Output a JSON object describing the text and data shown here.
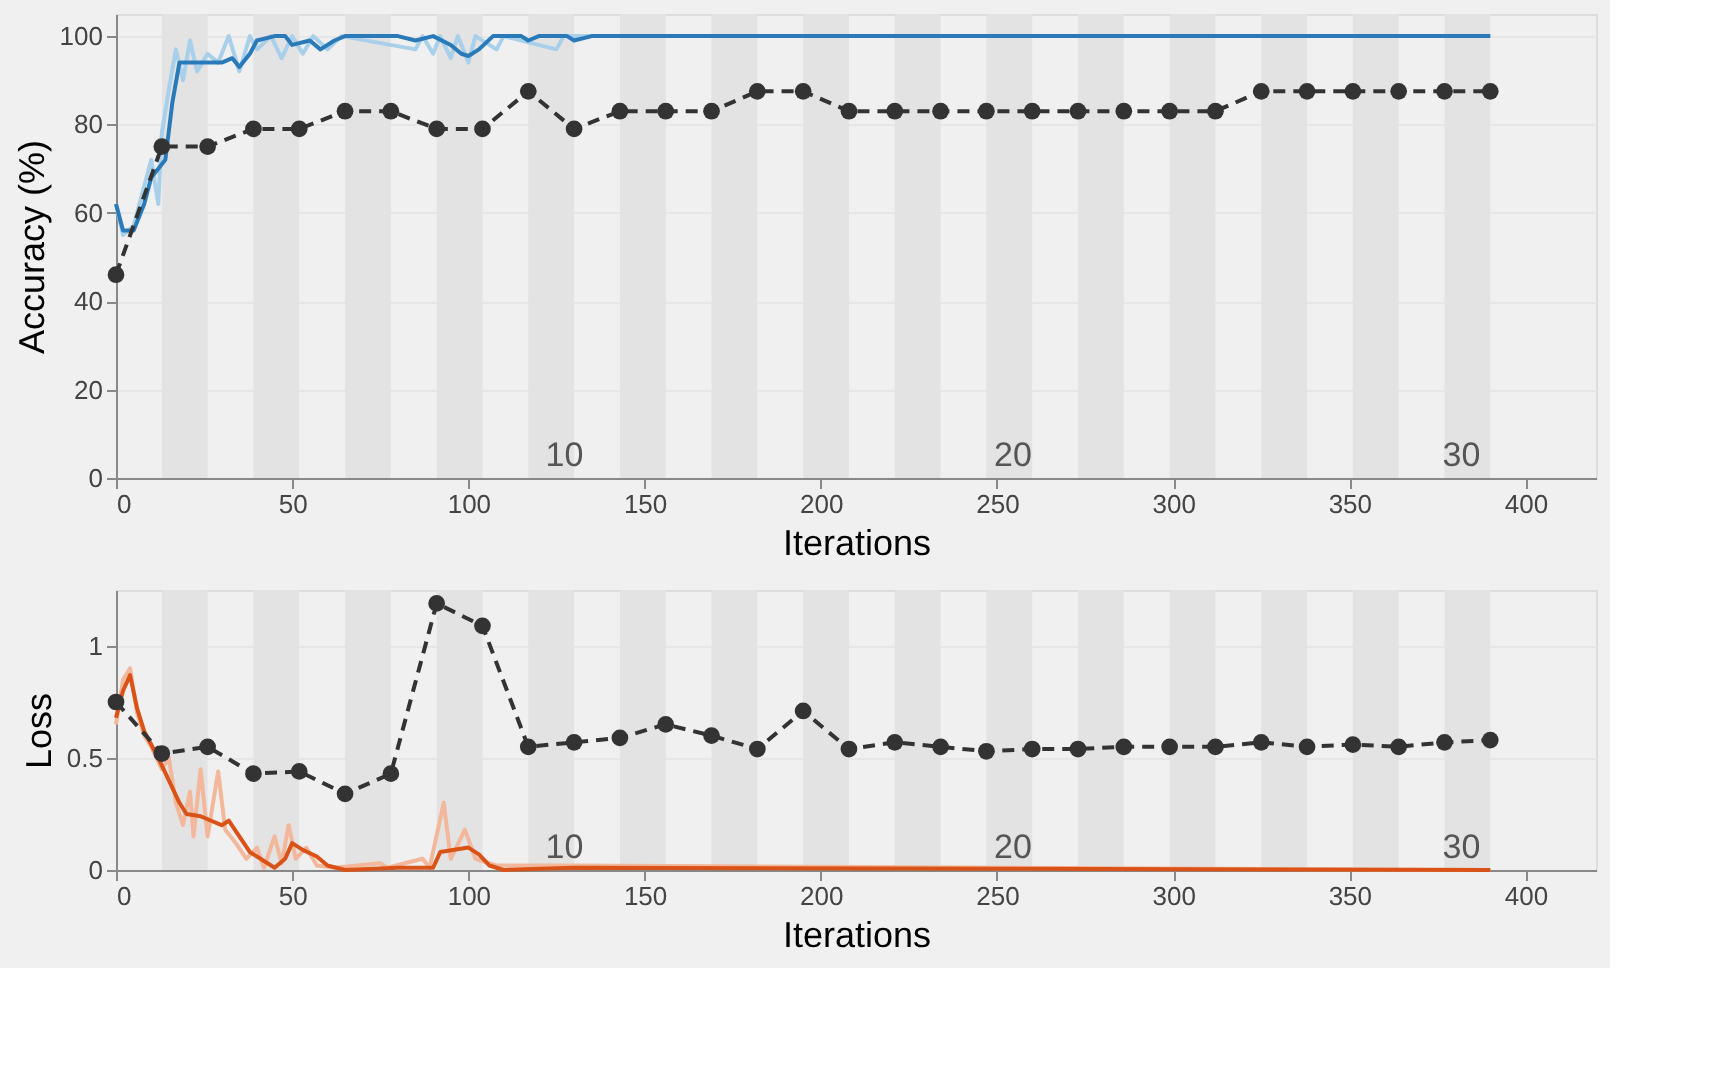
{
  "chart_data": [
    {
      "type": "line",
      "xlabel": "Iterations",
      "ylabel": "Accuracy (%)",
      "xlim": [
        0,
        420
      ],
      "xticks": [
        0,
        50,
        100,
        150,
        200,
        250,
        300,
        350,
        400
      ],
      "ylim": [
        0,
        105
      ],
      "yticks": [
        0,
        20,
        40,
        60,
        80,
        100
      ],
      "grid": "y",
      "bands": [
        {
          "axis": "x",
          "from": 13,
          "to": 26,
          "color": "#e3e3e3"
        },
        {
          "axis": "x",
          "from": 39,
          "to": 52,
          "color": "#e3e3e3"
        },
        {
          "axis": "x",
          "from": 65,
          "to": 78,
          "color": "#e3e3e3"
        },
        {
          "axis": "x",
          "from": 91,
          "to": 104,
          "color": "#e3e3e3"
        },
        {
          "axis": "x",
          "from": 117,
          "to": 130,
          "color": "#e3e3e3"
        },
        {
          "axis": "x",
          "from": 143,
          "to": 156,
          "color": "#e3e3e3"
        },
        {
          "axis": "x",
          "from": 169,
          "to": 182,
          "color": "#e3e3e3"
        },
        {
          "axis": "x",
          "from": 195,
          "to": 208,
          "color": "#e3e3e3"
        },
        {
          "axis": "x",
          "from": 221,
          "to": 234,
          "color": "#e3e3e3"
        },
        {
          "axis": "x",
          "from": 247,
          "to": 260,
          "color": "#e3e3e3"
        },
        {
          "axis": "x",
          "from": 273,
          "to": 286,
          "color": "#e3e3e3"
        },
        {
          "axis": "x",
          "from": 299,
          "to": 312,
          "color": "#e3e3e3"
        },
        {
          "axis": "x",
          "from": 325,
          "to": 338,
          "color": "#e3e3e3"
        },
        {
          "axis": "x",
          "from": 351,
          "to": 364,
          "color": "#e3e3e3"
        },
        {
          "axis": "x",
          "from": 377,
          "to": 390,
          "color": "#e3e3e3"
        }
      ],
      "annotations": [
        "10",
        "20",
        "30"
      ],
      "series": [
        {
          "type": "line",
          "color": "#a9d0ea",
          "marker": "none",
          "line_style": "solid",
          "x": [
            0,
            2,
            5,
            8,
            10,
            12,
            13,
            15,
            17,
            19,
            21,
            23,
            26,
            29,
            32,
            35,
            38,
            40,
            44,
            47,
            50,
            53,
            56,
            60,
            64,
            85,
            87,
            90,
            92,
            95,
            97,
            100,
            102,
            108,
            110,
            125,
            127,
            390
          ],
          "values": [
            62,
            55,
            57,
            66,
            72,
            62,
            78,
            88,
            97,
            90,
            99,
            92,
            96,
            94,
            100,
            92,
            100,
            97,
            100,
            95,
            100,
            96,
            100,
            97,
            100,
            97,
            100,
            96,
            100,
            95,
            100,
            94,
            100,
            97,
            100,
            97,
            100,
            100
          ]
        },
        {
          "type": "line",
          "color": "#2a7ab9",
          "marker": "none",
          "line_style": "solid",
          "x": [
            0,
            2,
            5,
            8,
            10,
            12,
            14,
            16,
            18,
            25,
            30,
            33,
            35,
            38,
            40,
            45,
            48,
            50,
            55,
            58,
            62,
            65,
            80,
            85,
            90,
            95,
            98,
            100,
            103,
            107,
            115,
            117,
            120,
            128,
            130,
            135,
            390
          ],
          "values": [
            62,
            56,
            56,
            62,
            68,
            70,
            72,
            85,
            94,
            94,
            94,
            95,
            93,
            96,
            99,
            100,
            100,
            98,
            99,
            97,
            99,
            100,
            100,
            99,
            100,
            98,
            96,
            95.5,
            97,
            100,
            100,
            99,
            100,
            100,
            99,
            100,
            100
          ]
        },
        {
          "type": "line",
          "color": "#333333",
          "marker": "circle",
          "line_style": "dashed",
          "x": [
            0,
            13,
            26,
            39,
            52,
            65,
            78,
            91,
            104,
            117,
            130,
            143,
            156,
            169,
            182,
            195,
            208,
            221,
            234,
            247,
            260,
            273,
            286,
            299,
            312,
            325,
            338,
            351,
            364,
            377,
            390
          ],
          "values": [
            46,
            75,
            75,
            79,
            79,
            83,
            83,
            79,
            79,
            87.5,
            79,
            83,
            83,
            83,
            87.5,
            87.5,
            83,
            83,
            83,
            83,
            83,
            83,
            83,
            83,
            83,
            87.5,
            87.5,
            87.5,
            87.5,
            87.5,
            87.5
          ]
        }
      ]
    },
    {
      "type": "line",
      "xlabel": "Iterations",
      "ylabel": "Loss",
      "xlim": [
        0,
        420
      ],
      "xticks": [
        0,
        50,
        100,
        150,
        200,
        250,
        300,
        350,
        400
      ],
      "ylim": [
        0,
        1.25
      ],
      "yticks": [
        {
          "value": 0,
          "label": "0"
        },
        0.5,
        {
          "value": 1,
          "label": "1"
        }
      ],
      "grid": "y",
      "bands": [
        {
          "axis": "x",
          "from": 13,
          "to": 26,
          "color": "#e3e3e3"
        },
        {
          "axis": "x",
          "from": 39,
          "to": 52,
          "color": "#e3e3e3"
        },
        {
          "axis": "x",
          "from": 65,
          "to": 78,
          "color": "#e3e3e3"
        },
        {
          "axis": "x",
          "from": 91,
          "to": 104,
          "color": "#e3e3e3"
        },
        {
          "axis": "x",
          "from": 117,
          "to": 130,
          "color": "#e3e3e3"
        },
        {
          "axis": "x",
          "from": 143,
          "to": 156,
          "color": "#e3e3e3"
        },
        {
          "axis": "x",
          "from": 169,
          "to": 182,
          "color": "#e3e3e3"
        },
        {
          "axis": "x",
          "from": 195,
          "to": 208,
          "color": "#e3e3e3"
        },
        {
          "axis": "x",
          "from": 221,
          "to": 234,
          "color": "#e3e3e3"
        },
        {
          "axis": "x",
          "from": 247,
          "to": 260,
          "color": "#e3e3e3"
        },
        {
          "axis": "x",
          "from": 273,
          "to": 286,
          "color": "#e3e3e3"
        },
        {
          "axis": "x",
          "from": 299,
          "to": 312,
          "color": "#e3e3e3"
        },
        {
          "axis": "x",
          "from": 325,
          "to": 338,
          "color": "#e3e3e3"
        },
        {
          "axis": "x",
          "from": 351,
          "to": 364,
          "color": "#e3e3e3"
        },
        {
          "axis": "x",
          "from": 377,
          "to": 390,
          "color": "#e3e3e3"
        }
      ],
      "annotations": [
        "10",
        "20",
        "30"
      ],
      "series": [
        {
          "type": "line",
          "color": "#f3b79b",
          "marker": "none",
          "line_style": "solid",
          "x": [
            0,
            2,
            4,
            6,
            8,
            10,
            13,
            15,
            17,
            19,
            21,
            22,
            24,
            26,
            29,
            31,
            34,
            37,
            40,
            42,
            45,
            47,
            49,
            51,
            54,
            57,
            62,
            75,
            77,
            87,
            89,
            93,
            95,
            99,
            102,
            108,
            130,
            390
          ],
          "values": [
            0.65,
            0.85,
            0.9,
            0.7,
            0.6,
            0.55,
            0.45,
            0.5,
            0.3,
            0.2,
            0.35,
            0.15,
            0.45,
            0.15,
            0.44,
            0.18,
            0.12,
            0.05,
            0.1,
            0.01,
            0.15,
            0.03,
            0.2,
            0.05,
            0.1,
            0.02,
            0.01,
            0.03,
            0.01,
            0.05,
            0.01,
            0.3,
            0.05,
            0.18,
            0.05,
            0.02,
            0.02,
            0
          ]
        },
        {
          "type": "line",
          "color": "#d95319",
          "marker": "none",
          "line_style": "solid",
          "x": [
            0,
            2,
            4,
            6,
            8,
            12,
            15,
            18,
            20,
            24,
            27,
            30,
            32,
            35,
            38,
            42,
            45,
            48,
            50,
            53,
            57,
            60,
            65,
            80,
            90,
            92,
            96,
            100,
            103,
            106,
            110,
            130,
            390
          ],
          "values": [
            0.68,
            0.8,
            0.87,
            0.72,
            0.62,
            0.5,
            0.4,
            0.3,
            0.25,
            0.24,
            0.22,
            0.2,
            0.22,
            0.15,
            0.08,
            0.04,
            0.01,
            0.05,
            0.12,
            0.09,
            0.06,
            0.02,
            0,
            0.01,
            0.01,
            0.08,
            0.09,
            0.1,
            0.07,
            0.02,
            0,
            0.01,
            0
          ]
        },
        {
          "type": "line",
          "color": "#333333",
          "marker": "circle",
          "line_style": "dashed",
          "x": [
            0,
            13,
            26,
            39,
            52,
            65,
            78,
            91,
            104,
            117,
            130,
            143,
            156,
            169,
            182,
            195,
            208,
            221,
            234,
            247,
            260,
            273,
            286,
            299,
            312,
            325,
            338,
            351,
            364,
            377,
            390
          ],
          "values": [
            0.75,
            0.52,
            0.55,
            0.43,
            0.44,
            0.34,
            0.43,
            1.19,
            1.09,
            0.55,
            0.57,
            0.59,
            0.65,
            0.6,
            0.54,
            0.71,
            0.54,
            0.57,
            0.55,
            0.53,
            0.54,
            0.54,
            0.55,
            0.55,
            0.55,
            0.57,
            0.55,
            0.56,
            0.55,
            0.57,
            0.58
          ]
        }
      ]
    }
  ]
}
